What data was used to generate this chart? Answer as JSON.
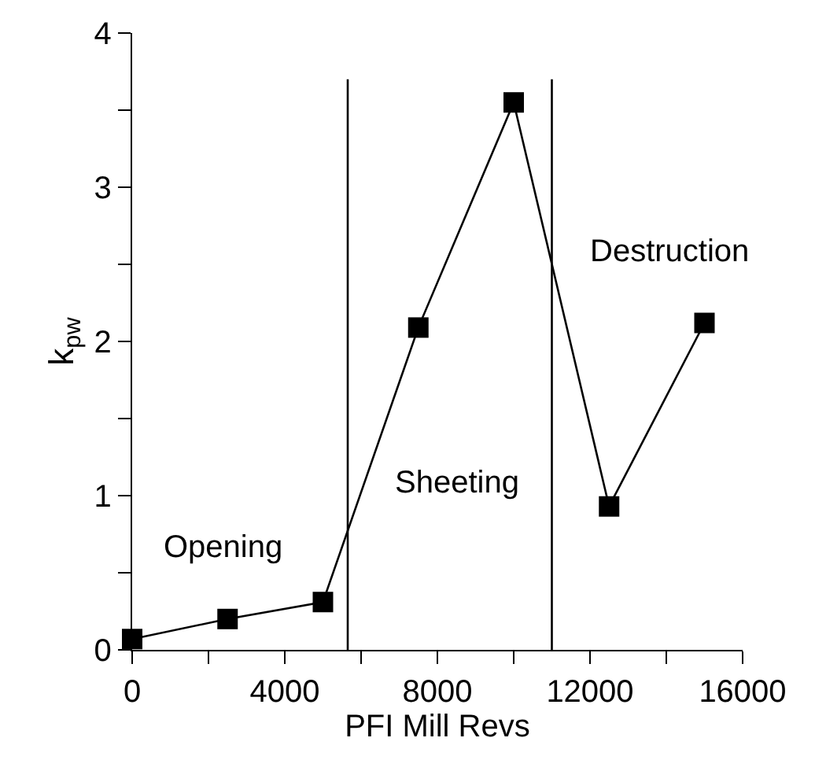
{
  "chart_data": {
    "type": "line",
    "xlabel": "PFI Mill Revs",
    "ylabel": "k$_{pw}$",
    "x": [
      0,
      2500,
      5000,
      7500,
      10000,
      12500,
      15000
    ],
    "series": [
      {
        "color": "#000000",
        "values": [
          0.07,
          0.2,
          0.31,
          2.09,
          3.55,
          0.93,
          2.12
        ]
      }
    ],
    "marker": "square",
    "line_style": "solid",
    "xlim": [
      0,
      16000
    ],
    "ylim": [
      0,
      4
    ],
    "xticks": [
      0,
      {
        "value": 2000,
        "label": null
      },
      4000,
      {
        "value": 6000,
        "label": null
      },
      8000,
      {
        "value": 10000,
        "label": null
      },
      12000,
      {
        "value": 14000,
        "label": null
      },
      16000
    ],
    "yticks": [
      0,
      {
        "value": 0.5,
        "label": null
      },
      1,
      {
        "value": 1.5,
        "label": null
      },
      2,
      {
        "value": 2.5,
        "label": null
      },
      3,
      {
        "value": 3.5,
        "label": null
      },
      4
    ],
    "ref_lines": [
      {
        "axis": "x",
        "value": 5650,
        "color": "#000000"
      },
      {
        "axis": "x",
        "value": 11000,
        "color": "#000000"
      }
    ],
    "annotations": [
      "Opening",
      "Sheeting",
      "Destruction"
    ]
  }
}
